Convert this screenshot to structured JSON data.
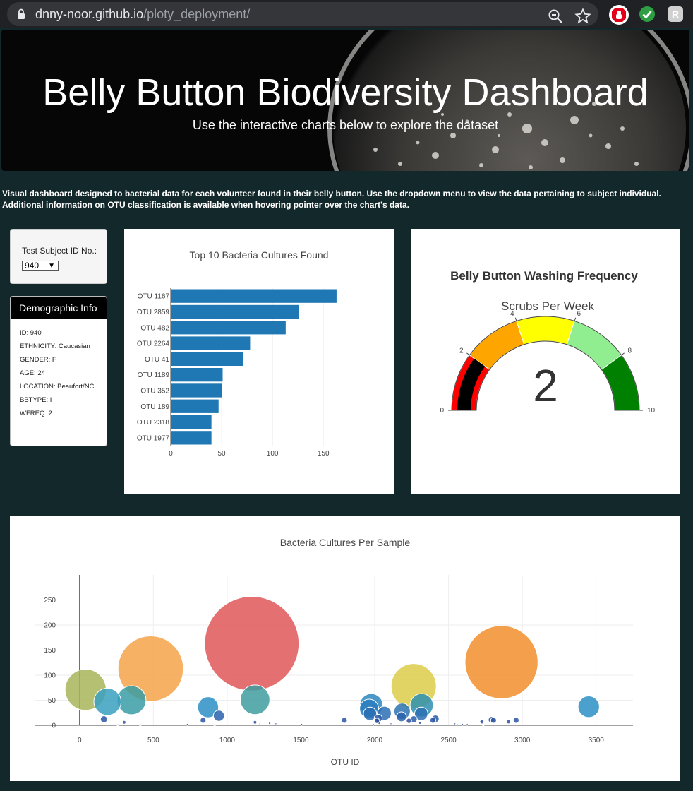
{
  "browser": {
    "domain": "dnny-noor.github.io",
    "path": "/ploty_deployment/"
  },
  "hero": {
    "title": "Belly Button Biodiversity Dashboard",
    "subtitle": "Use the interactive charts below to explore the dataset"
  },
  "intro": "Visual dashboard designed to bacterial data for each volunteer found in their belly button. Use the dropdown menu to view the data pertaining to subject individual. Additional information on OTU classification is available when hovering pointer over the chart's data.",
  "selector": {
    "label": "Test Subject ID No.:",
    "value": "940"
  },
  "demographic": {
    "title": "Demographic Info",
    "lines": [
      "ID: 940",
      "ETHNICITY: Caucasian",
      "GENDER: F",
      "AGE: 24",
      "LOCATION: Beaufort/NC",
      "BBTYPE: I",
      "WFREQ: 2"
    ]
  },
  "gauge": {
    "title": "Belly Button Washing Frequency",
    "subtitle": "Scrubs Per Week",
    "value": 2,
    "value_text": "2",
    "range": [
      0,
      10
    ],
    "ticks": [
      "0",
      "2",
      "4",
      "6",
      "8",
      "10"
    ],
    "step_colors": [
      "#ff0000",
      "#ffa500",
      "#ffff00",
      "#90ee90",
      "#008000"
    ],
    "bar_color": "#000000"
  },
  "chart_data": [
    {
      "type": "bar",
      "orientation": "horizontal",
      "title": "Top 10 Bacteria Cultures Found",
      "categories": [
        "OTU 1167",
        "OTU 2859",
        "OTU 482",
        "OTU 2264",
        "OTU 41",
        "OTU 1189",
        "OTU 352",
        "OTU 189",
        "OTU 2318",
        "OTU 1977"
      ],
      "values": [
        163,
        126,
        113,
        78,
        71,
        51,
        50,
        47,
        40,
        40
      ],
      "xlim": [
        0,
        170
      ],
      "xticks": [
        "0",
        "50",
        "100",
        "150"
      ],
      "bar_color": "#1f77b4"
    },
    {
      "type": "scatter",
      "title": "Bacteria Cultures Per Sample",
      "xlabel": "OTU ID",
      "xlim": [
        -300,
        3750
      ],
      "ylim": [
        0,
        300
      ],
      "xticks": [
        "0",
        "500",
        "1000",
        "1500",
        "2000",
        "2500",
        "3000",
        "3500"
      ],
      "yticks": [
        "0",
        "50",
        "100",
        "150",
        "200",
        "250"
      ],
      "points": [
        {
          "x": 1167,
          "y": 163,
          "color": "#e15759"
        },
        {
          "x": 2859,
          "y": 126,
          "color": "#f28e2b"
        },
        {
          "x": 482,
          "y": 113,
          "color": "#f5a34a"
        },
        {
          "x": 2264,
          "y": 78,
          "color": "#dccc4a"
        },
        {
          "x": 41,
          "y": 71,
          "color": "#a9b55a"
        },
        {
          "x": 1189,
          "y": 51,
          "color": "#3f9ea0"
        },
        {
          "x": 352,
          "y": 50,
          "color": "#3a9ea6"
        },
        {
          "x": 189,
          "y": 47,
          "color": "#3aa0bf"
        },
        {
          "x": 2318,
          "y": 40,
          "color": "#2d8fb0"
        },
        {
          "x": 1977,
          "y": 40,
          "color": "#2b86c0"
        },
        {
          "x": 3450,
          "y": 37,
          "color": "#2b8fc6"
        },
        {
          "x": 871,
          "y": 36,
          "color": "#2b8fc6"
        },
        {
          "x": 1962,
          "y": 33,
          "color": "#2b7dbd"
        },
        {
          "x": 2186,
          "y": 28,
          "color": "#2b73b3"
        },
        {
          "x": 2065,
          "y": 24,
          "color": "#2b6fb3"
        },
        {
          "x": 1968,
          "y": 23,
          "color": "#2b6fb3"
        },
        {
          "x": 2315,
          "y": 23,
          "color": "#2b6fb3"
        },
        {
          "x": 944,
          "y": 19,
          "color": "#2b63ad"
        },
        {
          "x": 2181,
          "y": 17,
          "color": "#2b63ad"
        },
        {
          "x": 2024,
          "y": 14,
          "color": "#2b5ca8"
        },
        {
          "x": 2411,
          "y": 13,
          "color": "#2b5ca8"
        },
        {
          "x": 2264,
          "y": 12,
          "color": "#2b5ca8"
        },
        {
          "x": 2791,
          "y": 11,
          "color": "#2b55a3"
        },
        {
          "x": 2394,
          "y": 10,
          "color": "#2b55a3"
        },
        {
          "x": 2805,
          "y": 10,
          "color": "#2b55a3"
        },
        {
          "x": 2958,
          "y": 10,
          "color": "#2b55a3"
        },
        {
          "x": 165,
          "y": 12,
          "color": "#2b55a3"
        },
        {
          "x": 837,
          "y": 10,
          "color": "#2b55a3"
        },
        {
          "x": 1794,
          "y": 10,
          "color": "#2b55a3"
        },
        {
          "x": 2015,
          "y": 9,
          "color": "#2b4f9e"
        },
        {
          "x": 2232,
          "y": 9,
          "color": "#2b4f9e"
        },
        {
          "x": 2726,
          "y": 7,
          "color": "#2b4f9e"
        },
        {
          "x": 2907,
          "y": 7,
          "color": "#2b4f9e"
        },
        {
          "x": 1189,
          "y": 6,
          "color": "#2b4f9e"
        },
        {
          "x": 2308,
          "y": 5,
          "color": "#2b4f9e"
        },
        {
          "x": 302,
          "y": 6,
          "color": "#2b4f9e"
        },
        {
          "x": 1288,
          "y": 4,
          "color": "#2b4f9e"
        },
        {
          "x": 2031,
          "y": 4,
          "color": "#2b4f9e"
        },
        {
          "x": 1222,
          "y": 3,
          "color": "#2b4f9e"
        },
        {
          "x": 1330,
          "y": 3,
          "color": "#2b4f9e"
        },
        {
          "x": 2110,
          "y": 3,
          "color": "#2b4f9e"
        },
        {
          "x": 2543,
          "y": 3,
          "color": "#2b4f9e"
        },
        {
          "x": 2558,
          "y": 2,
          "color": "#2b4f9e"
        },
        {
          "x": 1505,
          "y": 2,
          "color": "#2b4f9e"
        },
        {
          "x": 730,
          "y": 2,
          "color": "#2b4f9e"
        },
        {
          "x": 1990,
          "y": 2,
          "color": "#2b4f9e"
        },
        {
          "x": 2595,
          "y": 2,
          "color": "#2b4f9e"
        },
        {
          "x": 2627,
          "y": 2,
          "color": "#2b4f9e"
        },
        {
          "x": 259,
          "y": 1,
          "color": "#2b4f9e"
        },
        {
          "x": 412,
          "y": 1,
          "color": "#2b4f9e"
        },
        {
          "x": 915,
          "y": 1,
          "color": "#2b4f9e"
        },
        {
          "x": 2735,
          "y": 1,
          "color": "#2b4f9e"
        }
      ]
    }
  ]
}
